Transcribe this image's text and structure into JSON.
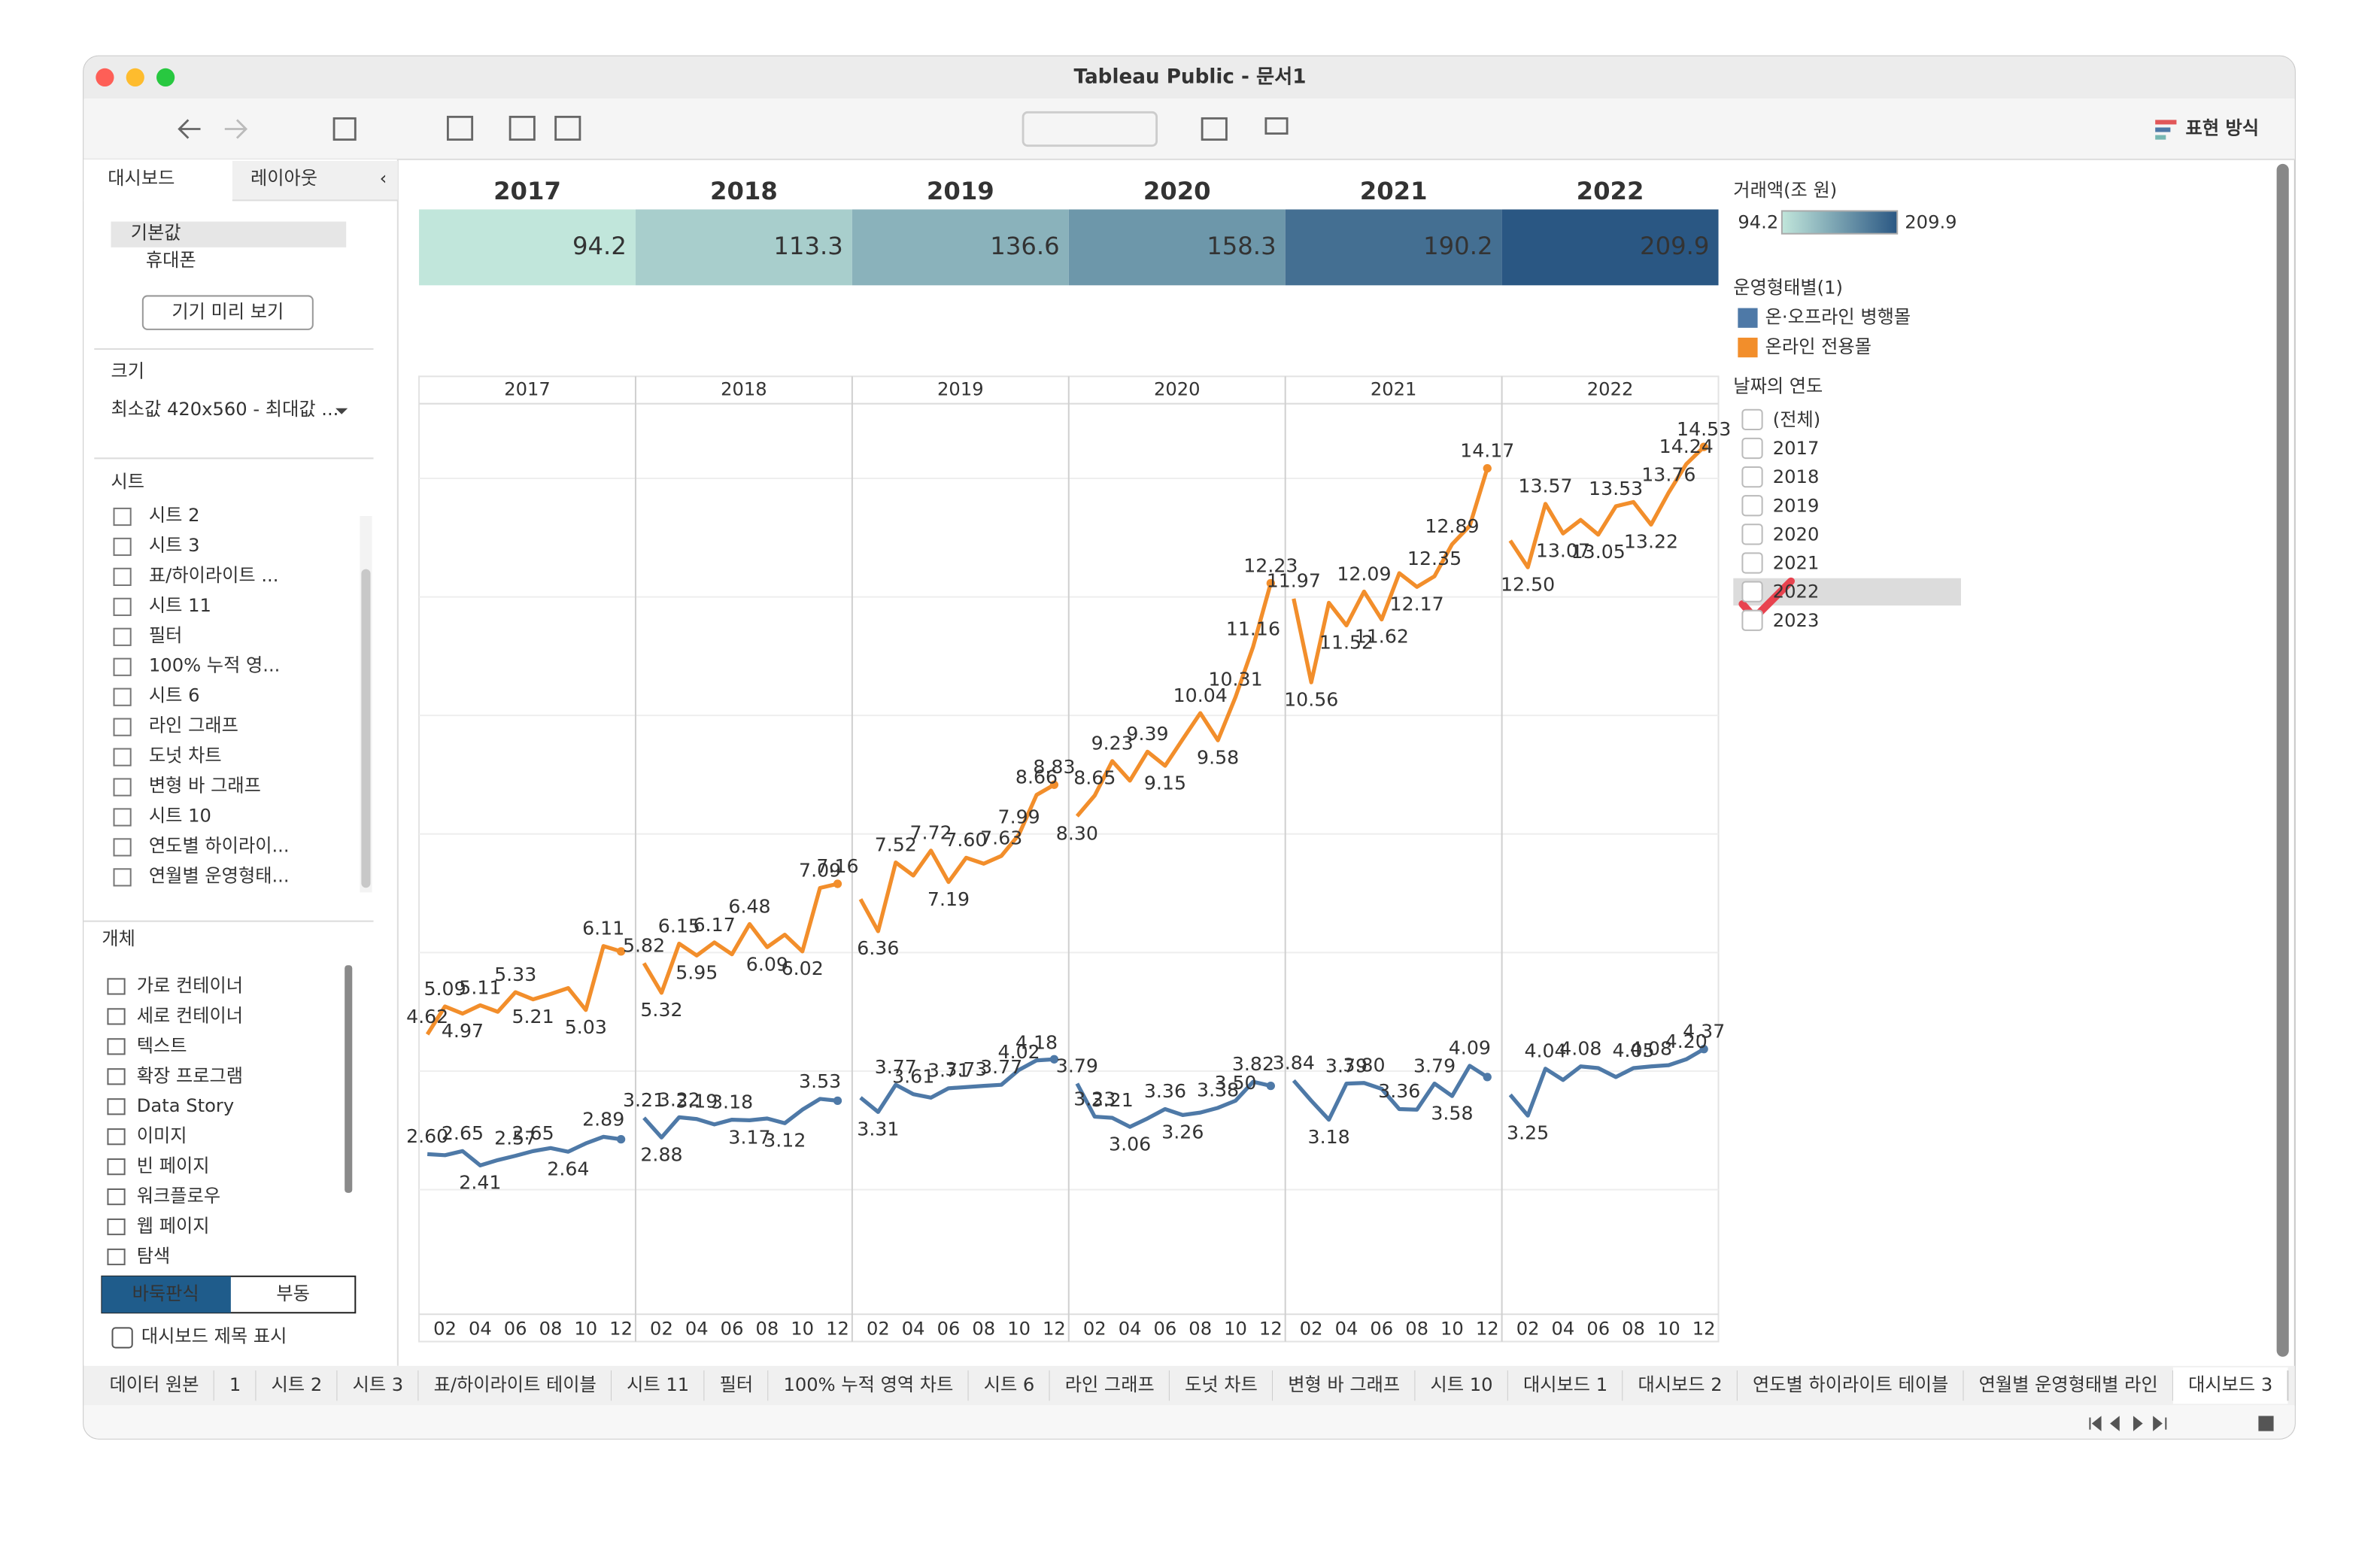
{
  "window": {
    "title": "Tableau Public - 문서1",
    "toolbar_label": "표현 방식"
  },
  "left_panel": {
    "tabs": [
      "대시보드",
      "레이아웃"
    ],
    "devices": [
      "기본값",
      "휴대폰"
    ],
    "preview_button": "기기 미리 보기",
    "size_title": "크기",
    "size_value": "최소값 420x560 - 최대값 ...",
    "sheets_title": "시트",
    "sheets": [
      "시트 2",
      "시트 3",
      "표/하이라이트 ...",
      "시트 11",
      "필터",
      "100% 누적 영...",
      "시트 6",
      "라인 그래프",
      "도넛 차트",
      "변형 바 그래프",
      "시트 10",
      "연도별 하이라이...",
      "연월별 운영형태..."
    ],
    "objects_title": "개체",
    "objects": [
      "가로 컨테이너",
      "세로 컨테이너",
      "텍스트",
      "확장 프로그램",
      "Data Story",
      "이미지",
      "빈 페이지",
      "워크플로우",
      "웹 페이지",
      "탐색"
    ],
    "layout_modes": [
      "바둑판식",
      "부동"
    ],
    "show_title_checkbox": "대시보드 제목 표시"
  },
  "tabs": [
    "데이터 원본",
    "1",
    "시트 2",
    "시트 3",
    "표/하이라이트 테이블",
    "시트 11",
    "필터",
    "100% 누적 영역 차트",
    "시트 6",
    "라인 그래프",
    "도넛 차트",
    "변형 바 그래프",
    "시트 10",
    "대시보드 1",
    "대시보드 2",
    "연도별 하이라이트 테이블",
    "연월별 운영형태별 라인",
    "대시보드 3"
  ],
  "heatmap": {
    "type": "heatmap",
    "categories": [
      "2017",
      "2018",
      "2019",
      "2020",
      "2021",
      "2022"
    ],
    "values": [
      94.2,
      113.3,
      136.6,
      158.3,
      190.2,
      209.9
    ],
    "legend_title": "거래액(조 원)",
    "color_range": [
      "#c1e6db",
      "#2a5783"
    ],
    "legend_range": [
      94.2,
      209.9
    ]
  },
  "chart_data": {
    "type": "line",
    "panels": [
      "2017",
      "2018",
      "2019",
      "2020",
      "2021",
      "2022"
    ],
    "months": [
      null,
      "02",
      null,
      "04",
      null,
      "06",
      null,
      "08",
      null,
      "10",
      null,
      "12"
    ],
    "ylim": [
      0,
      15.26
    ],
    "yticks": [
      2,
      4,
      6,
      8,
      10,
      12,
      14
    ],
    "grid": true,
    "legend_title": "운영형태별(1)",
    "series": [
      {
        "name": "온·오프라인 병행몰",
        "color": "#4e79a7",
        "values": [
          2.6,
          2.58,
          2.65,
          2.41,
          2.5,
          2.57,
          2.65,
          2.7,
          2.64,
          2.78,
          2.89,
          2.85,
          3.21,
          2.88,
          3.22,
          3.19,
          3.1,
          3.18,
          3.17,
          3.2,
          3.12,
          3.35,
          3.53,
          3.5,
          3.55,
          3.31,
          3.77,
          3.61,
          3.55,
          3.71,
          3.73,
          3.75,
          3.77,
          4.02,
          4.18,
          4.2,
          3.79,
          3.23,
          3.21,
          3.06,
          3.2,
          3.36,
          3.26,
          3.3,
          3.38,
          3.5,
          3.82,
          3.75,
          3.84,
          3.5,
          3.18,
          3.79,
          3.8,
          3.7,
          3.36,
          3.35,
          3.79,
          3.58,
          4.09,
          3.9,
          3.6,
          3.25,
          4.04,
          3.85,
          4.08,
          4.05,
          3.9,
          4.05,
          4.08,
          4.1,
          4.2,
          4.37
        ],
        "value_labels": [
          "2.60",
          null,
          "2.65",
          "2.41",
          null,
          "2.57",
          "2.65",
          null,
          "2.64",
          null,
          "2.89",
          null,
          "3.21",
          "2.88",
          "3.22",
          "3.19",
          null,
          "3.18",
          "3.17",
          null,
          "3.12",
          null,
          "3.53",
          null,
          null,
          "3.31",
          "3.77",
          "3.61",
          null,
          "3.71",
          "3.73",
          null,
          "3.77",
          "4.02",
          "4.18",
          null,
          "3.79",
          "3.23",
          "3.21",
          "3.06",
          null,
          "3.36",
          "3.26",
          null,
          "3.38",
          "3.50",
          "3.82",
          null,
          "3.84",
          null,
          "3.18",
          "3.79",
          "3.80",
          null,
          "3.36",
          null,
          "3.79",
          "3.58",
          "4.09",
          null,
          null,
          "3.25",
          "4.04",
          null,
          "4.08",
          null,
          null,
          "4.05",
          "4.08",
          null,
          "4.20",
          "4.37"
        ]
      },
      {
        "name": "온라인 전용몰",
        "color": "#f28e2b",
        "values": [
          4.62,
          5.09,
          4.97,
          5.11,
          5.0,
          5.33,
          5.21,
          5.3,
          5.4,
          5.03,
          6.11,
          6.02,
          5.82,
          5.32,
          6.15,
          5.95,
          6.17,
          5.97,
          6.48,
          6.09,
          6.3,
          6.02,
          7.09,
          7.16,
          6.9,
          6.36,
          7.52,
          7.3,
          7.72,
          7.19,
          7.6,
          7.5,
          7.63,
          7.99,
          8.66,
          8.83,
          8.3,
          8.65,
          9.23,
          8.9,
          9.39,
          9.15,
          9.6,
          10.04,
          9.58,
          10.31,
          11.16,
          12.23,
          11.97,
          10.56,
          11.9,
          11.52,
          12.09,
          11.62,
          12.4,
          12.17,
          12.35,
          12.89,
          13.2,
          14.17,
          12.95,
          12.5,
          13.57,
          13.07,
          13.3,
          13.05,
          13.53,
          13.6,
          13.22,
          13.76,
          14.24,
          14.53
        ],
        "value_labels": [
          "4.62",
          "5.09",
          "4.97",
          "5.11",
          null,
          "5.33",
          "5.21",
          null,
          null,
          "5.03",
          "6.11",
          null,
          "5.82",
          "5.32",
          "6.15",
          "5.95",
          "6.17",
          null,
          "6.48",
          "6.09",
          null,
          "6.02",
          "7.09",
          "7.16",
          null,
          "6.36",
          "7.52",
          null,
          "7.72",
          "7.19",
          "7.60",
          null,
          "7.63",
          "7.99",
          "8.66",
          "8.83",
          "8.30",
          "8.65",
          "9.23",
          null,
          "9.39",
          "9.15",
          null,
          "10.04",
          "9.58",
          "10.31",
          "11.16",
          "12.23",
          "11.97",
          "10.56",
          null,
          "11.52",
          "12.09",
          "11.62",
          null,
          "12.17",
          "12.35",
          "12.89",
          null,
          "14.17",
          null,
          "12.50",
          "13.57",
          "13.07",
          null,
          "13.05",
          "13.53",
          null,
          "13.22",
          "13.76",
          "14.24",
          "14.53"
        ]
      }
    ]
  },
  "filter": {
    "title": "날짜의 연도",
    "items": [
      "(전체)",
      "2017",
      "2018",
      "2019",
      "2020",
      "2021",
      "2022",
      "2023"
    ]
  }
}
